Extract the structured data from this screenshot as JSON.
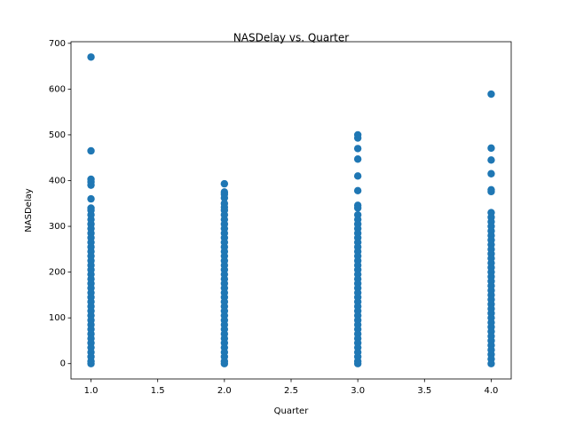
{
  "chart_data": {
    "type": "scatter",
    "title": "NASDelay vs. Quarter",
    "x_label": "Quarter",
    "y_label": "NASDelay",
    "color": "#1f77b4",
    "xlim": [
      0.85,
      4.15
    ],
    "ylim": [
      -33.5,
      703.5
    ],
    "xticks": [
      {
        "value": 1,
        "label": "1.0"
      },
      {
        "value": 1.5,
        "label": "1.5"
      },
      {
        "value": 2,
        "label": "2.0"
      },
      {
        "value": 2.5,
        "label": "2.5"
      },
      {
        "value": 3,
        "label": "3.0"
      },
      {
        "value": 3.5,
        "label": "3.5"
      },
      {
        "value": 4,
        "label": "4.0"
      }
    ],
    "yticks": [
      0,
      100,
      200,
      300,
      400,
      500,
      600,
      700
    ],
    "x": [
      1,
      1,
      1,
      1,
      1,
      1,
      1,
      1,
      1,
      1,
      1,
      1,
      1,
      1,
      1,
      1,
      1,
      1,
      1,
      1,
      1,
      1,
      1,
      1,
      1,
      1,
      1,
      1,
      1,
      1,
      1,
      1,
      1,
      1,
      1,
      1,
      1,
      1,
      1,
      1,
      1,
      1,
      2,
      2,
      2,
      2,
      2,
      2,
      2,
      2,
      2,
      2,
      2,
      2,
      2,
      2,
      2,
      2,
      2,
      2,
      2,
      2,
      2,
      2,
      2,
      2,
      2,
      2,
      2,
      2,
      2,
      2,
      2,
      2,
      2,
      2,
      2,
      2,
      2,
      2,
      2,
      2,
      2,
      3,
      3,
      3,
      3,
      3,
      3,
      3,
      3,
      3,
      3,
      3,
      3,
      3,
      3,
      3,
      3,
      3,
      3,
      3,
      3,
      3,
      3,
      3,
      3,
      3,
      3,
      3,
      3,
      3,
      3,
      3,
      3,
      3,
      3,
      3,
      3,
      3,
      3,
      3,
      3,
      3,
      3,
      4,
      4,
      4,
      4,
      4,
      4,
      4,
      4,
      4,
      4,
      4,
      4,
      4,
      4,
      4,
      4,
      4,
      4,
      4,
      4,
      4,
      4,
      4,
      4,
      4,
      4,
      4,
      4,
      4,
      4,
      4,
      4,
      4,
      4,
      4,
      4,
      4,
      4,
      4,
      4
    ],
    "y": [
      670,
      465,
      403,
      397,
      390,
      360,
      340,
      335,
      325,
      315,
      305,
      295,
      285,
      275,
      265,
      255,
      245,
      235,
      225,
      215,
      205,
      195,
      185,
      175,
      165,
      155,
      145,
      135,
      125,
      115,
      105,
      95,
      85,
      75,
      65,
      55,
      45,
      35,
      25,
      15,
      5,
      0,
      393,
      375,
      370,
      362,
      350,
      342,
      335,
      325,
      315,
      305,
      295,
      285,
      275,
      265,
      255,
      245,
      235,
      225,
      215,
      205,
      195,
      185,
      175,
      165,
      155,
      145,
      135,
      125,
      115,
      105,
      95,
      85,
      75,
      65,
      55,
      45,
      35,
      25,
      15,
      5,
      0,
      500,
      493,
      470,
      447,
      410,
      378,
      346,
      340,
      325,
      315,
      305,
      295,
      285,
      275,
      265,
      255,
      245,
      235,
      225,
      215,
      205,
      195,
      185,
      175,
      165,
      155,
      145,
      135,
      125,
      115,
      105,
      95,
      85,
      75,
      65,
      55,
      45,
      35,
      25,
      15,
      5,
      0,
      589,
      471,
      445,
      415,
      380,
      376,
      330,
      320,
      310,
      300,
      290,
      280,
      270,
      260,
      250,
      240,
      230,
      220,
      210,
      200,
      190,
      180,
      170,
      160,
      150,
      140,
      130,
      120,
      110,
      100,
      90,
      80,
      70,
      60,
      50,
      40,
      30,
      20,
      10,
      0
    ]
  }
}
